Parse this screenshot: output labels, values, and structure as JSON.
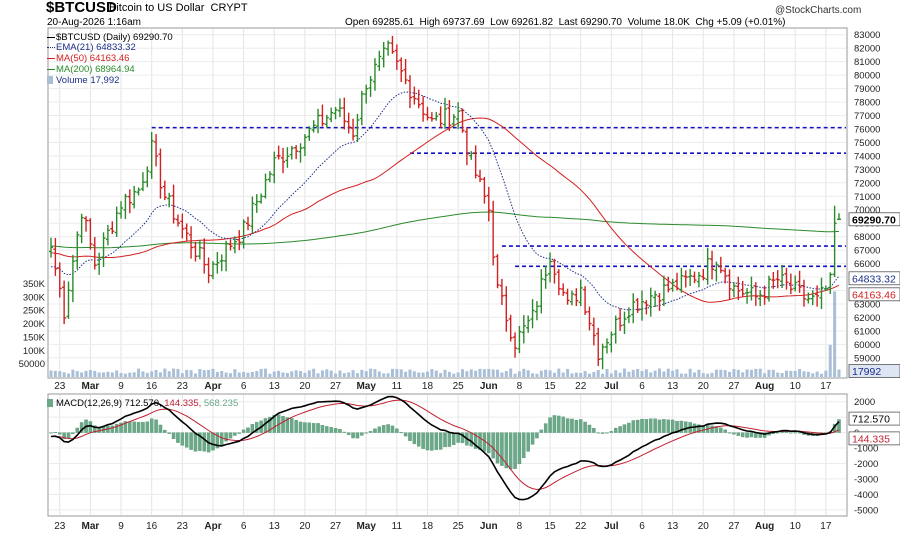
{
  "header": {
    "symbol": "$BTCUSD",
    "description": "Bitcoin to US Dollar",
    "exchange": "CRYPT",
    "date": "20-Aug-2026 1:16am",
    "open_label": "Open",
    "open": "69285.61",
    "high_label": "High",
    "high": "69737.69",
    "low_label": "Low",
    "low": "69261.82",
    "last_label": "Last",
    "last": "69290.70",
    "volume_label": "Volume",
    "volume": "18.0K",
    "chg_label": "Chg",
    "chg": "+5.09 (+0.01%)",
    "watermark": "@StockCharts.com"
  },
  "legend": {
    "main": "$BTCUSD (Daily) 69290.70",
    "ema": "EMA(21) 64833.32",
    "ma50": "MA(50) 64163.46",
    "ma200": "MA(200) 68964.94",
    "vol": "Volume 17,992",
    "macd": "MACD(12,26,9) 712.570, 144.335, 568.235",
    "macd_a": "MACD(12,26,9)",
    "macd_b": "712.570,",
    "macd_c": "144.335,",
    "macd_d": "568.235"
  },
  "colors": {
    "up": "#2a8a2a",
    "down": "#d12020",
    "ema": "#1c2f8a",
    "ma50": "#d42020",
    "ma200": "#2a8a2a",
    "volume": "#a9bfd8",
    "hline": "#1010c0",
    "macd": "#000000",
    "signal": "#c02030",
    "hist": "#6aa888"
  },
  "chart_data": [
    {
      "type": "candlestick",
      "title": "$BTCUSD (Daily)",
      "price_ticks": [
        59000,
        60000,
        61000,
        62000,
        63000,
        64000,
        65000,
        66000,
        67000,
        68000,
        69000,
        70000,
        71000,
        72000,
        73000,
        74000,
        75000,
        76000,
        77000,
        78000,
        79000,
        80000,
        81000,
        82000,
        83000
      ],
      "ylim": [
        57500,
        83500
      ],
      "volume_ticks": [
        "350K",
        "300K",
        "250K",
        "200K",
        "150K",
        "100K",
        "50000"
      ],
      "volume_tick_values": [
        350000,
        300000,
        250000,
        200000,
        150000,
        100000,
        50000
      ],
      "x_labels": [
        "23",
        "Mar",
        "9",
        "16",
        "23",
        "Apr",
        "6",
        "13",
        "20",
        "27",
        "May",
        "11",
        "18",
        "25",
        "Jun",
        "8",
        "15",
        "22",
        "Jul",
        "6",
        "13",
        "20",
        "27",
        "Aug",
        "10",
        "17"
      ],
      "value_tags": {
        "last": "69290.70",
        "ema": "64833.32",
        "ma50": "64163.46",
        "volume": "17992"
      },
      "horizontal_levels": [
        {
          "value": 76100,
          "from": "2026-03-16",
          "to": "2026-08-20"
        },
        {
          "value": 74200,
          "from": "2026-05-14",
          "to": "2026-08-20"
        },
        {
          "value": 67300,
          "from": "2026-06-04",
          "to": "2026-08-20"
        },
        {
          "value": 65800,
          "from": "2026-06-07",
          "to": "2026-08-20"
        }
      ],
      "anchors": [
        {
          "date": "2026-02-21",
          "close": 67200
        },
        {
          "date": "2026-02-24",
          "close": 62500
        },
        {
          "date": "2026-02-28",
          "close": 70000
        },
        {
          "date": "2026-03-03",
          "close": 66000
        },
        {
          "date": "2026-03-09",
          "close": 70500
        },
        {
          "date": "2026-03-13",
          "close": 71500
        },
        {
          "date": "2026-03-16",
          "close": 74500
        },
        {
          "date": "2026-03-19",
          "close": 71000
        },
        {
          "date": "2026-03-23",
          "close": 68500
        },
        {
          "date": "2026-03-29",
          "close": 65500
        },
        {
          "date": "2026-04-03",
          "close": 67500
        },
        {
          "date": "2026-04-06",
          "close": 68500
        },
        {
          "date": "2026-04-13",
          "close": 73500
        },
        {
          "date": "2026-04-20",
          "close": 75500
        },
        {
          "date": "2026-04-27",
          "close": 77500
        },
        {
          "date": "2026-05-01",
          "close": 75800
        },
        {
          "date": "2026-05-04",
          "close": 79500
        },
        {
          "date": "2026-05-09",
          "close": 81800
        },
        {
          "date": "2026-05-14",
          "close": 79000
        },
        {
          "date": "2026-05-19",
          "close": 76500
        },
        {
          "date": "2026-05-25",
          "close": 77200
        },
        {
          "date": "2026-05-28",
          "close": 73500
        },
        {
          "date": "2026-06-01",
          "close": 70000
        },
        {
          "date": "2026-06-03",
          "close": 64000
        },
        {
          "date": "2026-06-07",
          "close": 60200
        },
        {
          "date": "2026-06-11",
          "close": 62000
        },
        {
          "date": "2026-06-15",
          "close": 66800
        },
        {
          "date": "2026-06-19",
          "close": 62800
        },
        {
          "date": "2026-06-22",
          "close": 64200
        },
        {
          "date": "2026-06-26",
          "close": 59500
        },
        {
          "date": "2026-06-29",
          "close": 61000
        },
        {
          "date": "2026-07-03",
          "close": 62800
        },
        {
          "date": "2026-07-09",
          "close": 63800
        },
        {
          "date": "2026-07-15",
          "close": 64500
        },
        {
          "date": "2026-07-20",
          "close": 65500
        },
        {
          "date": "2026-07-23",
          "close": 66500
        },
        {
          "date": "2026-07-27",
          "close": 64200
        },
        {
          "date": "2026-08-01",
          "close": 63500
        },
        {
          "date": "2026-08-06",
          "close": 64800
        },
        {
          "date": "2026-08-12",
          "close": 63500
        },
        {
          "date": "2026-08-15",
          "close": 63200
        },
        {
          "date": "2026-08-18",
          "close": 64500
        },
        {
          "date": "2026-08-20",
          "close": 69290.7
        }
      ]
    },
    {
      "type": "line",
      "title": "MACD(12,26,9)",
      "y_ticks": [
        2000,
        1000,
        0,
        -1000,
        -2000,
        -3000,
        -4000,
        -5000
      ],
      "ylim": [
        -5400,
        2500
      ],
      "series": [
        {
          "name": "MACD",
          "last": 712.57
        },
        {
          "name": "Signal",
          "last": 144.335
        },
        {
          "name": "Histogram",
          "last": 568.235
        }
      ],
      "value_tags": {
        "macd": "712.570",
        "signal": "144.335"
      }
    }
  ]
}
